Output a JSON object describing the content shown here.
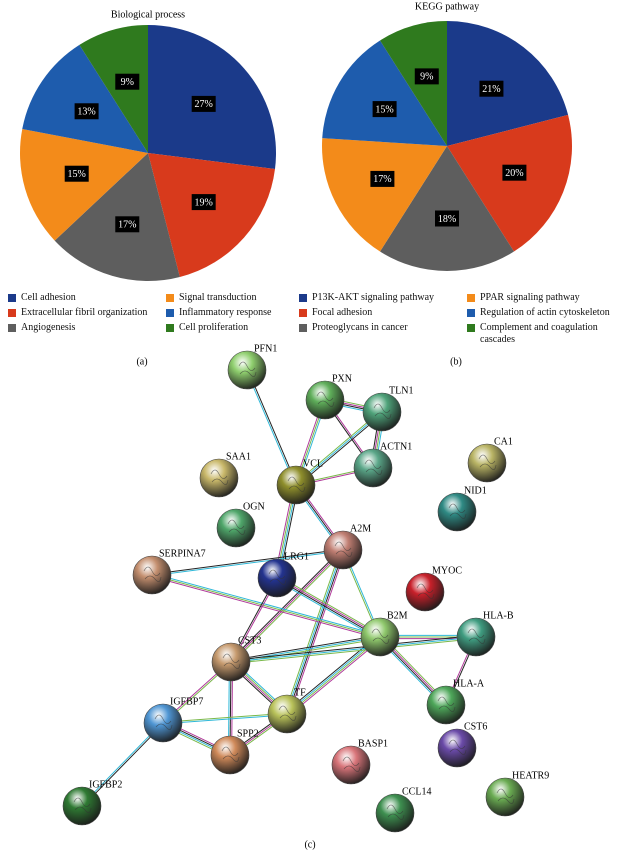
{
  "chart_data": [
    {
      "type": "pie",
      "title": "Biological process",
      "panel": "(a)",
      "categories": [
        "Cell adhesion",
        "Extracellular fibril organization",
        "Angiogenesis",
        "Signal transduction",
        "Inflammatory response",
        "Cell proliferation"
      ],
      "values": [
        27,
        19,
        17,
        15,
        13,
        9
      ],
      "value_labels": [
        "27%",
        "19%",
        "17%",
        "15%",
        "13%",
        "9%"
      ],
      "colors": [
        "#1b3a8a",
        "#d83a1c",
        "#5e5e5e",
        "#f38b1a",
        "#1e5cad",
        "#2f7a1e"
      ]
    },
    {
      "type": "pie",
      "title": "KEGG pathway",
      "panel": "(b)",
      "categories": [
        "P13K-AKT signaling pathway",
        "Focal adhesion",
        "Proteoglycans in cancer",
        "PPAR signaling pathway",
        "Regulation of actin cytoskeleton",
        "Complement and coagulation cascades"
      ],
      "values": [
        21,
        20,
        18,
        17,
        15,
        9
      ],
      "value_labels": [
        "21%",
        "20%",
        "18%",
        "17%",
        "15%",
        "9%"
      ],
      "colors": [
        "#1b3a8a",
        "#d83a1c",
        "#5e5e5e",
        "#f38b1a",
        "#1e5cad",
        "#2f7a1e"
      ]
    }
  ],
  "network": {
    "panel": "(c)",
    "nodes": [
      "PFN1",
      "PXN",
      "TLN1",
      "SAA1",
      "VCL",
      "ACTN1",
      "CA1",
      "NID1",
      "OGN",
      "A2M",
      "SERPINA7",
      "LRG1",
      "MYOC",
      "B2M",
      "HLA-B",
      "CST3",
      "HLA-A",
      "TF",
      "IGFBP7",
      "CST6",
      "SPP2",
      "BASP1",
      "HEATR9",
      "CCL14",
      "IGFBP2"
    ]
  }
}
